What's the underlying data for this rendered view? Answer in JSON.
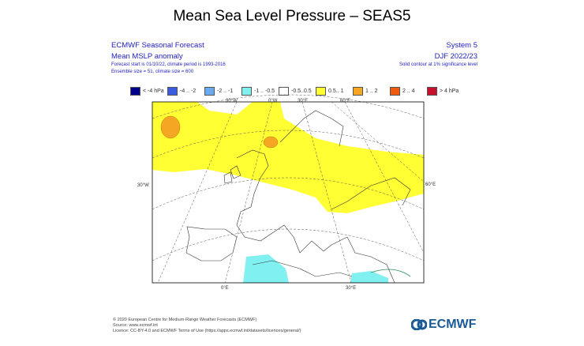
{
  "title": "Mean Sea Level Pressure – SEAS5",
  "header": {
    "left": [
      "ECMWF Seasonal Forecast",
      "Mean MSLP anomaly",
      "Forecast start is 01/10/22, climate period is 1993-2016",
      "Ensemble size = 51, climate size = 600"
    ],
    "right": [
      "System 5",
      "DJF 2022/23",
      "Solid contour at 1% significance level"
    ]
  },
  "legend": [
    {
      "label": "< -4 hPa",
      "color": "#00008b"
    },
    {
      "label": "-4 .. -2",
      "color": "#3a5de0"
    },
    {
      "label": "-2 .. -1",
      "color": "#6aaaf0"
    },
    {
      "label": "-1 .. -0.5",
      "color": "#80f0f0"
    },
    {
      "label": "-0.5..0.5",
      "color": "#ffffff"
    },
    {
      "label": "0.5.. 1",
      "color": "#ffff33"
    },
    {
      "label": "1 .. 2",
      "color": "#f5a623"
    },
    {
      "label": "2 .. 4",
      "color": "#f05a10"
    },
    {
      "label": "> 4 hPa",
      "color": "#c8102e"
    }
  ],
  "map_labels": {
    "top": [
      "30°W",
      "0°W",
      "30°E",
      "60°E"
    ],
    "left": "30°W",
    "right": "60°E",
    "bottom": [
      "0°E",
      "30°E"
    ]
  },
  "chart_data": {
    "type": "heatmap",
    "title": "Mean Sea Level Pressure – SEAS5",
    "variable": "Mean MSLP anomaly (hPa)",
    "season": "DJF 2022/23",
    "categories": [
      "< -4 hPa",
      "-4 .. -2",
      "-2 .. -1",
      "-1 .. -0.5",
      "-0.5..0.5",
      "0.5.. 1",
      "1 .. 2",
      "2 .. 4",
      "> 4 hPa"
    ],
    "regions": [
      {
        "area": "North Atlantic / Northern & Central Europe / Western Russia",
        "category": "0.5.. 1"
      },
      {
        "area": "South of Greenland",
        "category": "1 .. 2"
      },
      {
        "area": "North Sea / Norway",
        "category": "1 .. 2"
      },
      {
        "area": "Western Mediterranean / Algeria",
        "category": "-1 .. -0.5"
      },
      {
        "area": "Eastern Mediterranean",
        "category": "-1 .. -0.5"
      },
      {
        "area": "Southern Europe / Atlantic near Iberia",
        "category": "-0.5..0.5"
      }
    ]
  },
  "footer": {
    "lines": [
      "© 2020 European Centre for Medium-Range Weather Forecasts (ECMWF)",
      "Source: www.ecmwf.int",
      "Licence: CC-BY-4.0 and ECMWF Terms of Use (https://apps.ecmwf.int/datasets/licences/general/)"
    ],
    "logo": "ECMWF"
  }
}
